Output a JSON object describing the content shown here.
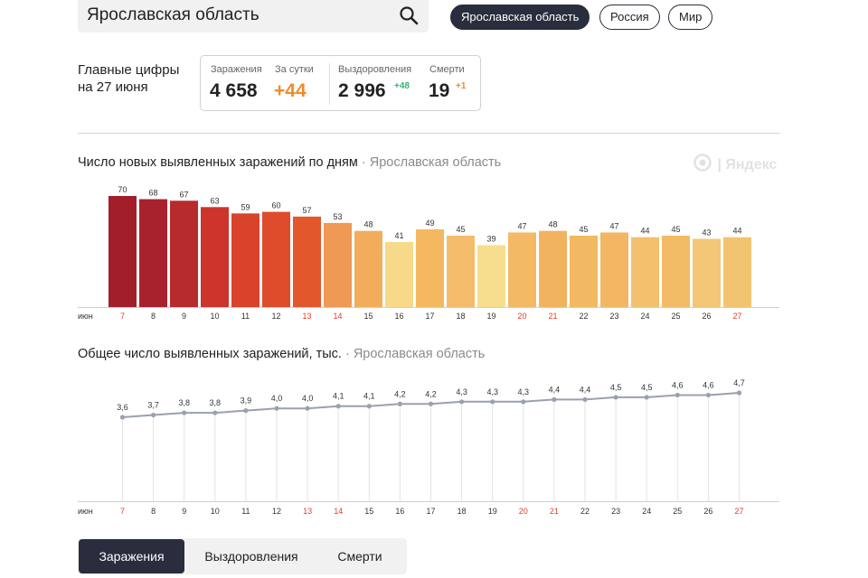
{
  "search": {
    "value": "Ярославская область"
  },
  "regions": [
    {
      "label": "Ярославская область",
      "active": true
    },
    {
      "label": "Россия",
      "active": false
    },
    {
      "label": "Мир",
      "active": false
    }
  ],
  "summary": {
    "title_line1": "Главные цифры",
    "title_line2": "на 27 июня",
    "infections_label": "Заражения",
    "infections_value": "4 658",
    "daily_label": "За сутки",
    "daily_value": "+44",
    "recovered_label": "Выздоровления",
    "recovered_value": "2 996",
    "recovered_delta": "+48",
    "deaths_label": "Смерти",
    "deaths_value": "19",
    "deaths_delta": "+1"
  },
  "watermark": "Яндекс",
  "chart_data": [
    {
      "type": "bar",
      "title": "Число новых выявленных заражений по дням",
      "region": "Ярославская область",
      "month_label": "июн",
      "categories": [
        "7",
        "8",
        "9",
        "10",
        "11",
        "12",
        "13",
        "14",
        "15",
        "16",
        "17",
        "18",
        "19",
        "20",
        "21",
        "22",
        "23",
        "24",
        "25",
        "26",
        "27"
      ],
      "values": [
        70,
        68,
        67,
        63,
        59,
        60,
        57,
        53,
        48,
        41,
        49,
        45,
        39,
        47,
        48,
        45,
        47,
        44,
        45,
        43,
        44
      ],
      "weekend_days": [
        "7",
        "13",
        "14",
        "20",
        "21",
        "27"
      ],
      "colors": [
        "#a31e2b",
        "#a8222e",
        "#b72b2c",
        "#cd342c",
        "#d9432b",
        "#df4c2c",
        "#e2572c",
        "#ef9955",
        "#f2ad5c",
        "#f7d98a",
        "#f4b860",
        "#f4bc6a",
        "#f7de8e",
        "#f3b965",
        "#f2b35f",
        "#f2b862",
        "#f3b662",
        "#f3c06e",
        "#f2bb66",
        "#f3c777",
        "#f3c46f"
      ],
      "weekend_color": "#e23b2c",
      "ylim": [
        0,
        70
      ]
    },
    {
      "type": "line",
      "title": "Общее число выявленных заражений, тыс.",
      "region": "Ярославская область",
      "month_label": "июн",
      "categories": [
        "7",
        "8",
        "9",
        "10",
        "11",
        "12",
        "13",
        "14",
        "15",
        "16",
        "17",
        "18",
        "19",
        "20",
        "21",
        "22",
        "23",
        "24",
        "25",
        "26",
        "27"
      ],
      "values": [
        3.6,
        3.7,
        3.8,
        3.8,
        3.9,
        4.0,
        4.0,
        4.1,
        4.1,
        4.2,
        4.2,
        4.3,
        4.3,
        4.3,
        4.4,
        4.4,
        4.5,
        4.5,
        4.6,
        4.6,
        4.7
      ],
      "labels": [
        "3,6",
        "3,7",
        "3,8",
        "3,8",
        "3,9",
        "4,0",
        "4,0",
        "4,1",
        "4,1",
        "4,2",
        "4,2",
        "4,3",
        "4,3",
        "4,3",
        "4,4",
        "4,4",
        "4,5",
        "4,5",
        "4,6",
        "4,6",
        "4,7"
      ],
      "weekend_days": [
        "7",
        "13",
        "14",
        "20",
        "21",
        "27"
      ],
      "line_color": "#9aa0b0",
      "ylim": [
        3.6,
        4.7
      ]
    }
  ],
  "tabs": [
    {
      "label": "Заражения",
      "active": true
    },
    {
      "label": "Выздоровления",
      "active": false
    },
    {
      "label": "Смерти",
      "active": false
    }
  ]
}
